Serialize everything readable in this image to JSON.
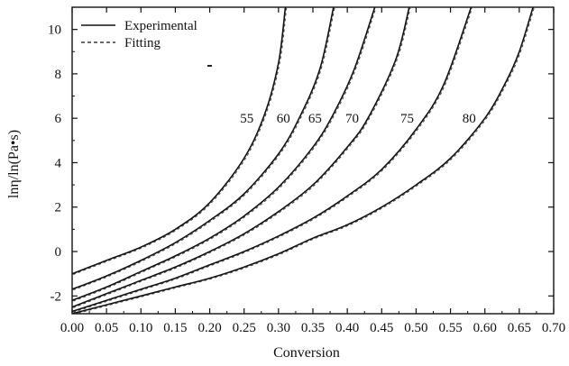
{
  "chart_data": {
    "type": "line",
    "title": "",
    "xlabel": "Conversion",
    "ylabel": "lnη/ln(Pa•s)",
    "xlim": [
      0.0,
      0.7
    ],
    "ylim": [
      -2.8,
      11.0
    ],
    "x_ticks": [
      "0.00",
      "0.05",
      "0.10",
      "0.15",
      "0.20",
      "0.25",
      "0.30",
      "0.35",
      "0.40",
      "0.45",
      "0.50",
      "0.55",
      "0.60",
      "0.65",
      "0.70"
    ],
    "y_ticks": [
      "-2",
      "0",
      "2",
      "4",
      "6",
      "8",
      "10"
    ],
    "legend": {
      "position": "top-left",
      "entries": [
        {
          "label": "Experimental",
          "style": "solid"
        },
        {
          "label": "Fitting",
          "style": "dashed"
        }
      ]
    },
    "series": [
      {
        "curve_label": "55",
        "x": [
          0.0,
          0.05,
          0.1,
          0.15,
          0.2,
          0.25,
          0.28,
          0.3,
          0.31
        ],
        "y": [
          -1.0,
          -0.4,
          0.2,
          1.0,
          2.2,
          4.2,
          6.2,
          8.5,
          11.0
        ]
      },
      {
        "curve_label": "60",
        "x": [
          0.0,
          0.05,
          0.1,
          0.15,
          0.2,
          0.25,
          0.3,
          0.33,
          0.36,
          0.38
        ],
        "y": [
          -1.7,
          -1.1,
          -0.4,
          0.4,
          1.4,
          2.6,
          4.4,
          6.0,
          8.2,
          11.0
        ]
      },
      {
        "curve_label": "65",
        "x": [
          0.0,
          0.05,
          0.1,
          0.15,
          0.2,
          0.25,
          0.3,
          0.35,
          0.38,
          0.41,
          0.44
        ],
        "y": [
          -2.2,
          -1.6,
          -0.9,
          -0.2,
          0.6,
          1.6,
          2.9,
          4.7,
          6.2,
          8.2,
          11.0
        ]
      },
      {
        "curve_label": "70",
        "x": [
          0.0,
          0.05,
          0.1,
          0.15,
          0.2,
          0.25,
          0.3,
          0.35,
          0.4,
          0.43,
          0.47,
          0.49
        ],
        "y": [
          -2.5,
          -1.9,
          -1.3,
          -0.7,
          0.0,
          0.8,
          1.8,
          3.0,
          4.7,
          6.0,
          8.6,
          11.0
        ]
      },
      {
        "curve_label": "75",
        "x": [
          0.0,
          0.05,
          0.1,
          0.15,
          0.2,
          0.25,
          0.3,
          0.35,
          0.4,
          0.45,
          0.5,
          0.54,
          0.58
        ],
        "y": [
          -2.7,
          -2.2,
          -1.7,
          -1.2,
          -0.6,
          0.0,
          0.7,
          1.5,
          2.5,
          3.7,
          5.5,
          7.5,
          11.0
        ]
      },
      {
        "curve_label": "80",
        "x": [
          0.0,
          0.05,
          0.1,
          0.15,
          0.2,
          0.25,
          0.3,
          0.35,
          0.4,
          0.45,
          0.5,
          0.55,
          0.6,
          0.63,
          0.65,
          0.67
        ],
        "y": [
          -2.8,
          -2.4,
          -2.0,
          -1.6,
          -1.2,
          -0.7,
          -0.1,
          0.6,
          1.2,
          2.0,
          3.0,
          4.2,
          6.0,
          7.6,
          9.0,
          11.0
        ]
      }
    ]
  }
}
